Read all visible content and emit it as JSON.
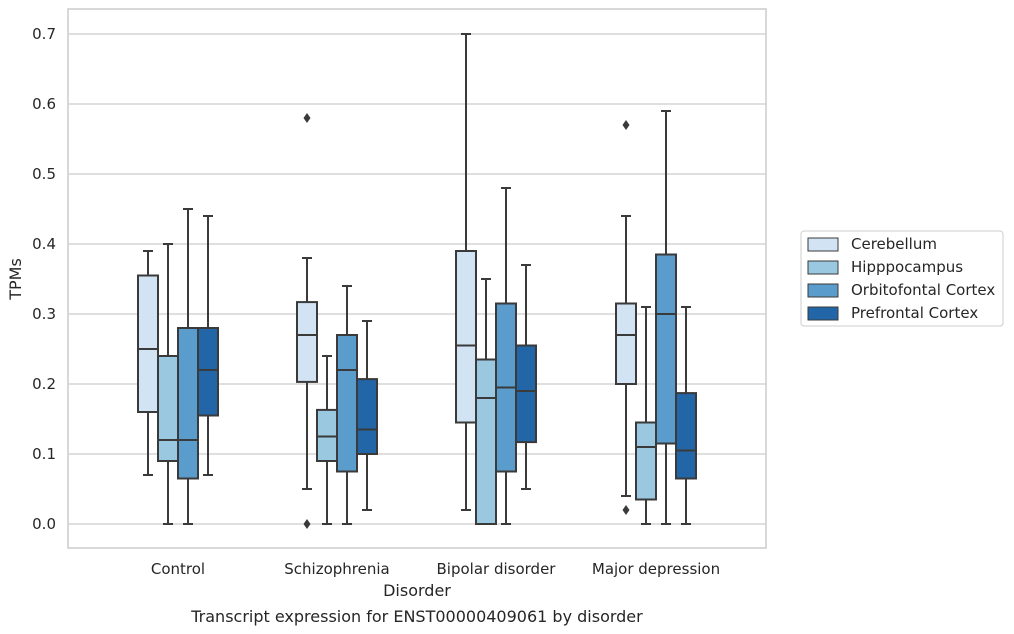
{
  "chart_data": {
    "type": "box",
    "title": "",
    "caption": "Transcript expression for ENST00000409061 by disorder",
    "xlabel": "Disorder",
    "ylabel": "TPMs",
    "ylim": [
      -0.034,
      0.736
    ],
    "yticks": [
      0.0,
      0.1,
      0.2,
      0.3,
      0.4,
      0.5,
      0.6,
      0.7
    ],
    "ytick_labels": [
      "0.0",
      "0.1",
      "0.2",
      "0.3",
      "0.4",
      "0.5",
      "0.6",
      "0.7"
    ],
    "grid": "horizontal",
    "legend_placement": "right, outside plot",
    "categories": [
      "Control",
      "Schizophrenia",
      "Bipolar disorder",
      "Major depression"
    ],
    "series": [
      {
        "name": "Cerebellum",
        "color": "#d2e3f3",
        "boxes": [
          {
            "whislo": 0.07,
            "q1": 0.16,
            "med": 0.25,
            "q3": 0.355,
            "whishi": 0.39,
            "fliers": []
          },
          {
            "whislo": 0.05,
            "q1": 0.203,
            "med": 0.27,
            "q3": 0.317,
            "whishi": 0.38,
            "fliers": [
              0.0,
              0.58
            ]
          },
          {
            "whislo": 0.02,
            "q1": 0.145,
            "med": 0.255,
            "q3": 0.39,
            "whishi": 0.7,
            "fliers": []
          },
          {
            "whislo": 0.04,
            "q1": 0.2,
            "med": 0.27,
            "q3": 0.315,
            "whishi": 0.44,
            "fliers": [
              0.02,
              0.57
            ]
          }
        ]
      },
      {
        "name": "Hipppocampus",
        "color": "#9ac8e0",
        "boxes": [
          {
            "whislo": 0.0,
            "q1": 0.09,
            "med": 0.12,
            "q3": 0.24,
            "whishi": 0.4,
            "fliers": []
          },
          {
            "whislo": 0.0,
            "q1": 0.09,
            "med": 0.125,
            "q3": 0.163,
            "whishi": 0.24,
            "fliers": []
          },
          {
            "whislo": 0.0,
            "q1": 0.0,
            "med": 0.18,
            "q3": 0.235,
            "whishi": 0.35,
            "fliers": []
          },
          {
            "whislo": 0.0,
            "q1": 0.035,
            "med": 0.11,
            "q3": 0.145,
            "whishi": 0.31,
            "fliers": []
          }
        ]
      },
      {
        "name": "Orbitofontal Cortex",
        "color": "#5a9ccb",
        "boxes": [
          {
            "whislo": 0.0,
            "q1": 0.065,
            "med": 0.12,
            "q3": 0.28,
            "whishi": 0.45,
            "fliers": []
          },
          {
            "whislo": 0.0,
            "q1": 0.075,
            "med": 0.22,
            "q3": 0.27,
            "whishi": 0.34,
            "fliers": []
          },
          {
            "whislo": 0.0,
            "q1": 0.075,
            "med": 0.195,
            "q3": 0.315,
            "whishi": 0.48,
            "fliers": []
          },
          {
            "whislo": 0.0,
            "q1": 0.115,
            "med": 0.3,
            "q3": 0.385,
            "whishi": 0.59,
            "fliers": []
          }
        ]
      },
      {
        "name": "Prefrontal Cortex",
        "color": "#2266a8",
        "boxes": [
          {
            "whislo": 0.07,
            "q1": 0.155,
            "med": 0.22,
            "q3": 0.28,
            "whishi": 0.44,
            "fliers": []
          },
          {
            "whislo": 0.02,
            "q1": 0.1,
            "med": 0.135,
            "q3": 0.207,
            "whishi": 0.29,
            "fliers": []
          },
          {
            "whislo": 0.05,
            "q1": 0.117,
            "med": 0.19,
            "q3": 0.255,
            "whishi": 0.37,
            "fliers": []
          },
          {
            "whislo": 0.0,
            "q1": 0.065,
            "med": 0.105,
            "q3": 0.187,
            "whishi": 0.31,
            "fliers": []
          }
        ]
      }
    ],
    "colors": {
      "grid": "#cccccc",
      "frame": "#cccccc",
      "box_edge": "#3a3a3a",
      "legend_border": "#cccccc"
    }
  }
}
